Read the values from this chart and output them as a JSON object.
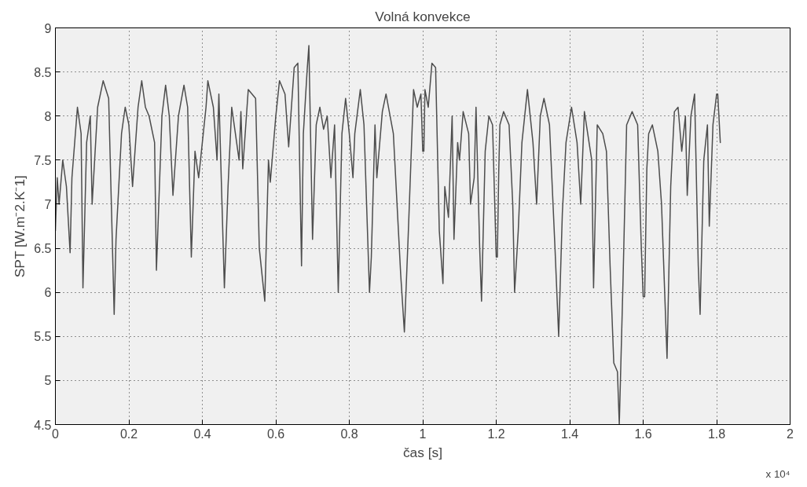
{
  "chart_data": {
    "type": "line",
    "title": "Volná konvekce",
    "xlabel": "čas [s]",
    "ylabel": "SPT [W.m⁻2.K⁻1]",
    "annotations": [
      "x 10⁴"
    ],
    "xlim": [
      0,
      2
    ],
    "xticks": [
      0,
      0.2,
      0.4,
      0.6,
      0.8,
      1,
      1.2,
      1.4,
      1.6,
      1.8,
      2
    ],
    "ylim": [
      4.5,
      9
    ],
    "yticks": [
      4.5,
      5,
      5.5,
      6,
      6.5,
      7,
      7.5,
      8,
      8.5,
      9
    ],
    "grid": true,
    "line_style": "solid",
    "marker": "none",
    "series": [
      {
        "color": "#4d4d4d",
        "x": [
          0,
          0.005,
          0.01,
          0.02,
          0.03,
          0.04,
          0.045,
          0.06,
          0.07,
          0.075,
          0.085,
          0.095,
          0.1,
          0.115,
          0.13,
          0.145,
          0.16,
          0.165,
          0.18,
          0.19,
          0.2,
          0.21,
          0.225,
          0.235,
          0.245,
          0.255,
          0.27,
          0.275,
          0.29,
          0.3,
          0.31,
          0.32,
          0.335,
          0.35,
          0.36,
          0.37,
          0.38,
          0.39,
          0.41,
          0.415,
          0.43,
          0.44,
          0.445,
          0.46,
          0.47,
          0.48,
          0.49,
          0.5,
          0.505,
          0.51,
          0.525,
          0.545,
          0.555,
          0.57,
          0.58,
          0.585,
          0.6,
          0.61,
          0.625,
          0.635,
          0.65,
          0.66,
          0.67,
          0.675,
          0.685,
          0.69,
          0.7,
          0.71,
          0.72,
          0.73,
          0.74,
          0.75,
          0.76,
          0.77,
          0.78,
          0.79,
          0.8,
          0.81,
          0.815,
          0.83,
          0.84,
          0.855,
          0.86,
          0.87,
          0.875,
          0.89,
          0.9,
          0.92,
          0.94,
          0.95,
          0.96,
          0.975,
          0.985,
          0.995,
          1.0,
          1.003,
          1.006,
          1.015,
          1.025,
          1.035,
          1.045,
          1.055,
          1.06,
          1.07,
          1.08,
          1.085,
          1.095,
          1.1,
          1.11,
          1.125,
          1.13,
          1.14,
          1.145,
          1.155,
          1.16,
          1.17,
          1.18,
          1.19,
          1.2,
          1.203,
          1.207,
          1.21,
          1.22,
          1.235,
          1.245,
          1.25,
          1.26,
          1.27,
          1.285,
          1.295,
          1.3,
          1.31,
          1.32,
          1.33,
          1.345,
          1.36,
          1.37,
          1.38,
          1.39,
          1.405,
          1.42,
          1.43,
          1.44,
          1.46,
          1.465,
          1.475,
          1.49,
          1.5,
          1.51,
          1.52,
          1.53,
          1.535,
          1.545,
          1.555,
          1.57,
          1.585,
          1.595,
          1.6,
          1.604,
          1.61,
          1.615,
          1.625,
          1.64,
          1.65,
          1.665,
          1.675,
          1.685,
          1.695,
          1.705,
          1.715,
          1.72,
          1.73,
          1.74,
          1.75,
          1.755,
          1.765,
          1.775,
          1.78,
          1.79,
          1.8,
          1.803,
          1.81
        ],
        "values": [
          6.7,
          7.3,
          7.0,
          7.5,
          7.2,
          6.45,
          7.3,
          8.1,
          7.8,
          6.05,
          7.7,
          8.0,
          7.0,
          8.1,
          8.4,
          8.2,
          5.75,
          6.6,
          7.8,
          8.1,
          7.9,
          7.2,
          8.1,
          8.4,
          8.1,
          8.0,
          7.7,
          6.25,
          8.0,
          8.35,
          8.0,
          7.1,
          8.0,
          8.35,
          8.1,
          6.4,
          7.6,
          7.3,
          8.1,
          8.4,
          8.1,
          7.5,
          8.25,
          6.05,
          7.2,
          8.1,
          7.8,
          7.5,
          8.05,
          7.4,
          8.3,
          8.2,
          6.5,
          5.9,
          7.5,
          7.25,
          8.0,
          8.4,
          8.25,
          7.65,
          8.55,
          8.6,
          6.3,
          7.8,
          8.5,
          8.8,
          6.6,
          7.9,
          8.1,
          7.85,
          8.0,
          7.3,
          7.9,
          6.0,
          7.8,
          8.2,
          7.8,
          7.3,
          7.8,
          8.3,
          7.9,
          6.0,
          6.4,
          7.9,
          7.3,
          8.05,
          8.25,
          7.8,
          6.2,
          5.55,
          6.6,
          8.3,
          8.1,
          8.25,
          7.6,
          7.6,
          8.3,
          8.1,
          8.6,
          8.55,
          6.7,
          6.1,
          7.2,
          6.85,
          8.0,
          6.6,
          7.7,
          7.5,
          8.05,
          7.8,
          7.0,
          7.3,
          8.1,
          6.5,
          5.9,
          7.6,
          8.0,
          7.9,
          6.4,
          6.4,
          7.4,
          7.9,
          8.05,
          7.9,
          7.0,
          6.0,
          6.7,
          7.7,
          8.3,
          7.9,
          7.7,
          7.0,
          8.0,
          8.2,
          7.9,
          6.5,
          5.5,
          6.9,
          7.7,
          8.1,
          7.7,
          7.0,
          8.05,
          7.5,
          6.05,
          7.9,
          7.8,
          7.6,
          6.3,
          5.2,
          5.1,
          4.5,
          6.1,
          7.9,
          8.05,
          7.9,
          6.5,
          5.95,
          5.95,
          7.4,
          7.8,
          7.9,
          7.6,
          7.0,
          5.25,
          7.2,
          8.05,
          8.1,
          7.6,
          8.0,
          7.1,
          8.0,
          8.25,
          6.3,
          5.75,
          7.5,
          7.9,
          6.75,
          7.9,
          8.25,
          8.25,
          7.7
        ]
      }
    ]
  }
}
